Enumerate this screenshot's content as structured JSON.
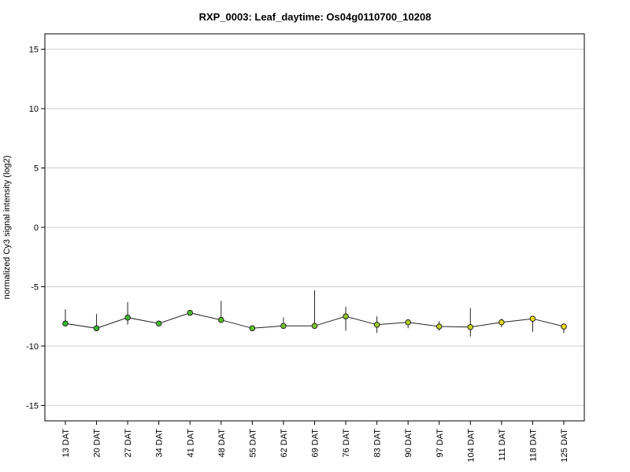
{
  "chart_data": {
    "type": "line",
    "title": "RXP_0003: Leaf_daytime: Os04g0110700_10208",
    "xlabel": "",
    "ylabel": "normalized Cy3 signal intensity (log2)",
    "ylim": [
      -16.3,
      16.3
    ],
    "yticks": [
      15,
      10,
      5,
      0,
      -5,
      -10,
      -15
    ],
    "grid": true,
    "categories": [
      "13 DAT",
      "20 DAT",
      "27 DAT",
      "34 DAT",
      "41 DAT",
      "48 DAT",
      "55 DAT",
      "62 DAT",
      "69 DAT",
      "76 DAT",
      "83 DAT",
      "90 DAT",
      "97 DAT",
      "104 DAT",
      "111 DAT",
      "118 DAT",
      "125 DAT"
    ],
    "values": [
      -8.1,
      -8.5,
      -7.6,
      -8.1,
      -7.2,
      -7.8,
      -8.5,
      -8.3,
      -8.3,
      -7.5,
      -8.2,
      -8.0,
      -8.35,
      -8.4,
      -8.0,
      -7.7,
      -8.35
    ],
    "error_high": [
      -6.9,
      -7.3,
      -6.3,
      -8.1,
      -7.0,
      -6.2,
      -8.5,
      -7.6,
      -5.3,
      -6.7,
      -7.5,
      -7.8,
      -7.9,
      -6.8,
      -7.7,
      -7.7,
      -8.1
    ],
    "error_low": [
      -8.1,
      -8.5,
      -8.2,
      -8.1,
      -7.4,
      -8.0,
      -8.5,
      -8.3,
      -8.3,
      -8.7,
      -8.9,
      -8.5,
      -8.7,
      -9.2,
      -8.4,
      -8.8,
      -8.9
    ],
    "point_colors": [
      "#2db82d",
      "#33b82d",
      "#3ab92c",
      "#42bb2b",
      "#4bbd2a",
      "#56bf29",
      "#62c228",
      "#6fc427",
      "#7dc726",
      "#8cc925",
      "#9ccc24",
      "#acce22",
      "#bcd120",
      "#ccd31e",
      "#dcd61c",
      "#e8d81a",
      "#f2da18"
    ]
  }
}
